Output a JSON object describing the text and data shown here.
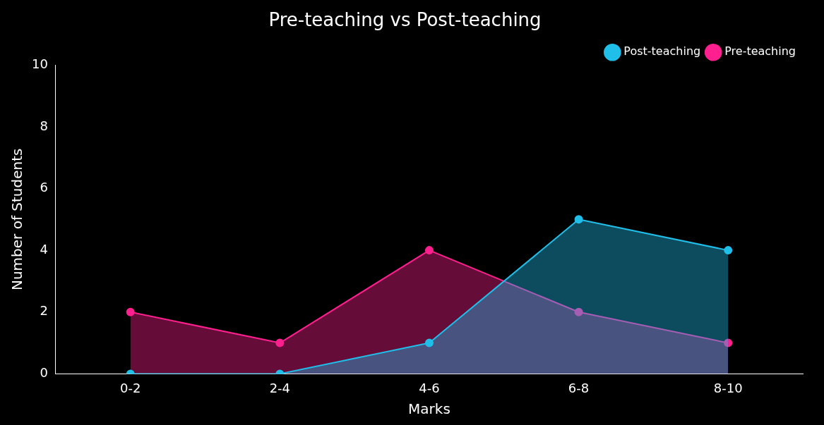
{
  "chart_data": {
    "type": "area",
    "title": "Pre-teaching vs Post-teaching",
    "xlabel": "Marks",
    "ylabel": "Number of Students",
    "categories": [
      "0-2",
      "2-4",
      "4-6",
      "6-8",
      "8-10"
    ],
    "series": [
      {
        "name": "Post-teaching",
        "color": "#1fbfea",
        "values": [
          0,
          0,
          1,
          5,
          4
        ]
      },
      {
        "name": "Pre-teaching",
        "color": "#ff1f8e",
        "values": [
          2,
          1,
          4,
          2,
          1
        ]
      }
    ],
    "ylim": [
      0,
      10
    ],
    "yticks": [
      0,
      2,
      4,
      6,
      8,
      10
    ],
    "grid": false,
    "legend": "top right",
    "marker": "circle",
    "line_style": "solid"
  }
}
